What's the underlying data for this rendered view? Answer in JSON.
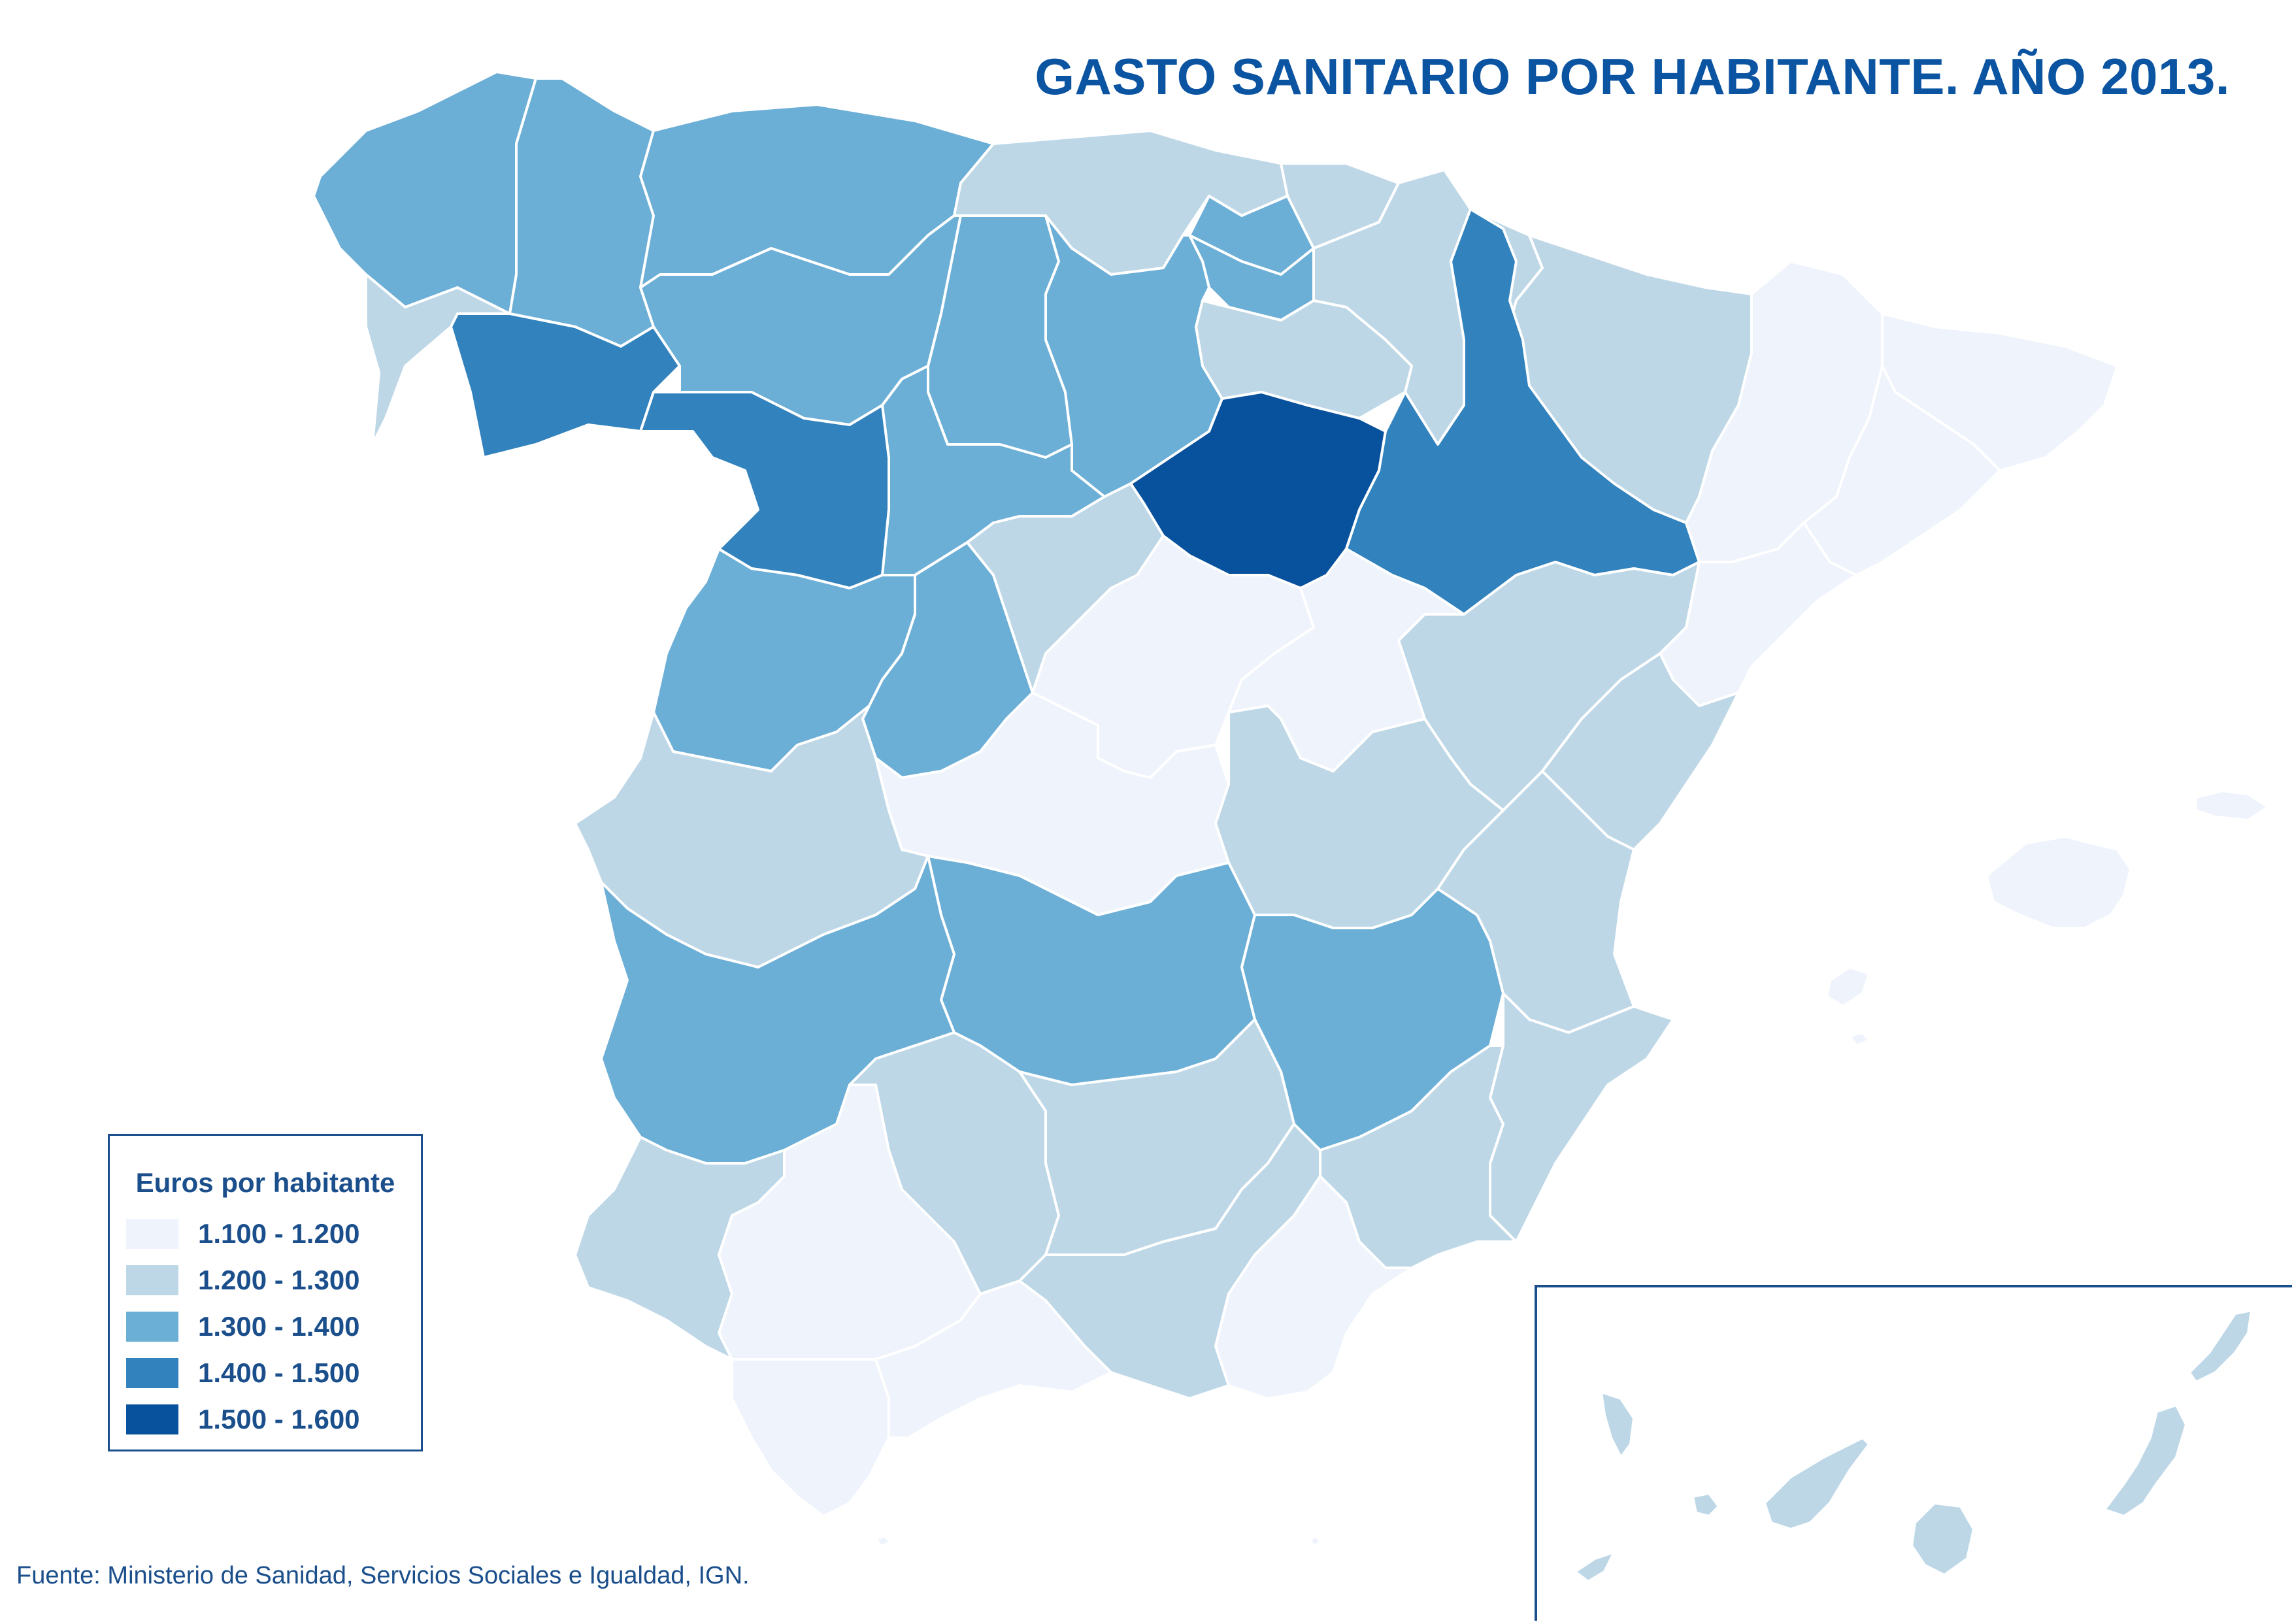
{
  "map": {
    "title": "GASTO SANITARIO POR HABITANTE. AÑO 2013.",
    "source": "Fuente: Ministerio de Sanidad, Servicios Sociales e Igualdad, IGN.",
    "legend": {
      "title": "Euros por habitante",
      "classes": [
        {
          "label": "1.100 - 1.200",
          "color": "#eef3fc"
        },
        {
          "label": "1.200 - 1.300",
          "color": "#bdd7e7"
        },
        {
          "label": "1.300 - 1.400",
          "color": "#6baed6"
        },
        {
          "label": "1.400 - 1.500",
          "color": "#3182bd"
        },
        {
          "label": "1.500 - 1.600",
          "color": "#08519c"
        }
      ]
    },
    "provinces": [
      {
        "name": "A Coruña",
        "class": 2
      },
      {
        "name": "Lugo",
        "class": 2
      },
      {
        "name": "Pontevedra",
        "class": 1
      },
      {
        "name": "Ourense",
        "class": 3
      },
      {
        "name": "Asturias",
        "class": 2
      },
      {
        "name": "Cantabria",
        "class": 1
      },
      {
        "name": "Bizkaia",
        "class": 2
      },
      {
        "name": "Gipuzkoa",
        "class": 1
      },
      {
        "name": "Araba/Álava",
        "class": 2
      },
      {
        "name": "Navarra",
        "class": 1
      },
      {
        "name": "La Rioja",
        "class": 1
      },
      {
        "name": "León",
        "class": 2
      },
      {
        "name": "Palencia",
        "class": 2
      },
      {
        "name": "Burgos",
        "class": 2
      },
      {
        "name": "Zamora",
        "class": 3
      },
      {
        "name": "Valladolid",
        "class": 2
      },
      {
        "name": "Soria",
        "class": 4
      },
      {
        "name": "Salamanca",
        "class": 2
      },
      {
        "name": "Ávila",
        "class": 2
      },
      {
        "name": "Segovia",
        "class": 1
      },
      {
        "name": "Huesca",
        "class": 1
      },
      {
        "name": "Zaragoza",
        "class": 3
      },
      {
        "name": "Teruel",
        "class": 1
      },
      {
        "name": "Lleida",
        "class": 0
      },
      {
        "name": "Girona",
        "class": 0
      },
      {
        "name": "Barcelona",
        "class": 0
      },
      {
        "name": "Tarragona",
        "class": 0
      },
      {
        "name": "Madrid",
        "class": 0
      },
      {
        "name": "Guadalajara",
        "class": 0
      },
      {
        "name": "Toledo",
        "class": 0
      },
      {
        "name": "Cuenca",
        "class": 1
      },
      {
        "name": "Ciudad Real",
        "class": 2
      },
      {
        "name": "Albacete",
        "class": 2
      },
      {
        "name": "Cáceres",
        "class": 1
      },
      {
        "name": "Badajoz",
        "class": 2
      },
      {
        "name": "Castellón",
        "class": 1
      },
      {
        "name": "Valencia",
        "class": 1
      },
      {
        "name": "Alicante",
        "class": 1
      },
      {
        "name": "Murcia",
        "class": 1
      },
      {
        "name": "Huelva",
        "class": 1
      },
      {
        "name": "Sevilla",
        "class": 0
      },
      {
        "name": "Córdoba",
        "class": 1
      },
      {
        "name": "Jaén",
        "class": 1
      },
      {
        "name": "Cádiz",
        "class": 0
      },
      {
        "name": "Málaga",
        "class": 0
      },
      {
        "name": "Granada",
        "class": 1
      },
      {
        "name": "Almería",
        "class": 0
      },
      {
        "name": "Illes Balears",
        "class": 0
      },
      {
        "name": "Santa Cruz de Tenerife",
        "class": 1
      },
      {
        "name": "Las Palmas",
        "class": 1
      },
      {
        "name": "Ceuta",
        "class": 0
      },
      {
        "name": "Melilla",
        "class": 0
      }
    ]
  }
}
